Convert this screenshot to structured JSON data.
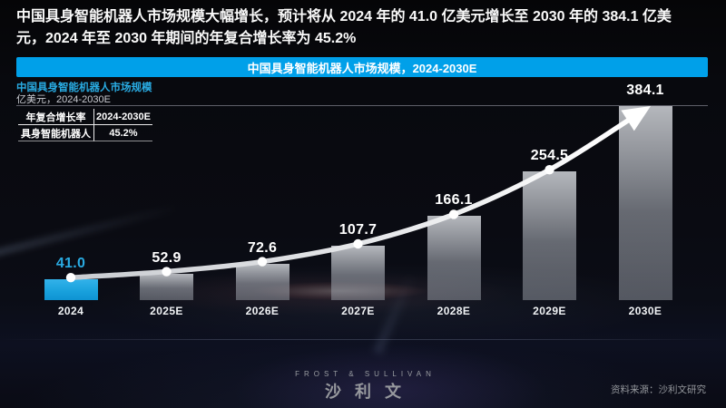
{
  "page": {
    "headline_line1": "中国具身智能机器人市场规模大幅增长，预计将从 2024 年的 41.0 亿美元增长至 2030 年的 384.1 亿美",
    "headline_line2": "元，2024 年至 2030 年期间的年复合增长率为 45.2%",
    "source_note": "资料来源：沙利文研究"
  },
  "banner": {
    "title": "中国具身智能机器人市场规模，2024-2030E",
    "bg_color": "#00A0E9"
  },
  "chart": {
    "title": "中国具身智能机器人市场规模",
    "subtitle": "亿美元，2024-2030E",
    "cagr_table": {
      "header": [
        "年复合增长率",
        "2024-2030E"
      ],
      "rows": [
        [
          "具身智能机器人",
          "45.2%"
        ]
      ]
    }
  },
  "chart_data": {
    "type": "bar",
    "title": "中国具身智能机器人市场规模",
    "unit_label": "亿美元",
    "categories": [
      "2024",
      "2025E",
      "2026E",
      "2027E",
      "2028E",
      "2029E",
      "2030E"
    ],
    "values": [
      41.0,
      52.9,
      72.6,
      107.7,
      166.1,
      254.5,
      384.1
    ],
    "ylim": [
      0,
      384.1
    ],
    "grid": "top-border-only",
    "arrow_overlay": true,
    "highlight_index": 0,
    "highlight_color": "#29ABE2",
    "bar_color": "#AEB3BB",
    "curve_color": "#E3E5E8"
  },
  "footer": {
    "logo_en": "FROST & SULLIVAN",
    "logo_cn": "沙利文"
  },
  "colors": {
    "accent_blue": "#00A0E9",
    "highlight_cyan": "#29ABE2",
    "background": "#0A0B12"
  }
}
